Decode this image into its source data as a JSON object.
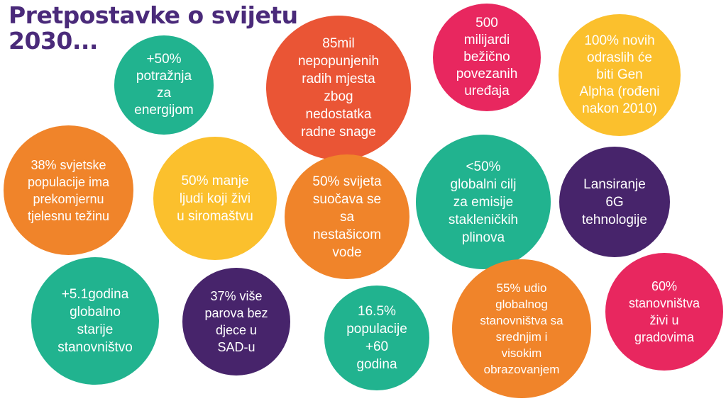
{
  "title": {
    "line1": "Pretpostavke o svijetu",
    "line2": "2030..."
  },
  "colors": {
    "teal": "#21b38f",
    "orange": "#f0842a",
    "red": "#ea5535",
    "pink": "#e8275f",
    "yellow": "#fbc02d",
    "purple": "#47246b",
    "title": "#4a2a7a"
  },
  "bubbles": [
    {
      "id": "energy-demand",
      "text": "+50%\npotražnja\nza\nenergijom",
      "color": "teal"
    },
    {
      "id": "unfilled-jobs",
      "text": "85mil\nnepopunjenih\nradih mjesta\nzbog\nnedostatka\nradne snage",
      "color": "red"
    },
    {
      "id": "wireless-devices",
      "text": "500\nmilijardi\nbežično\npovezanih\nuređaja",
      "color": "pink"
    },
    {
      "id": "gen-alpha",
      "text": "100% novih\nodraslih će\nbiti Gen\nAlpha (rođeni\nnakon 2010)",
      "color": "yellow"
    },
    {
      "id": "overweight",
      "text": "38% svjetske\npopulacije ima\nprekomjernu\ntjelesnu težinu",
      "color": "orange"
    },
    {
      "id": "poverty",
      "text": "50% manje\nljudi koji živi\nu siromaštvu",
      "color": "yellow"
    },
    {
      "id": "water-shortage",
      "text": "50% svijeta\nsuočava se\nsa\nnestašicom\nvode",
      "color": "orange"
    },
    {
      "id": "emissions",
      "text": "<50%\nglobalni cilj\nza emisije\nstakleničkih\nplinova",
      "color": "teal"
    },
    {
      "id": "6g",
      "text": "Lansiranje\n6G\ntehnologije",
      "color": "purple"
    },
    {
      "id": "aging",
      "text": "+5.1godina\nglobalno\nstarije\nstanovništvo",
      "color": "teal"
    },
    {
      "id": "childless-couples",
      "text": "37% više\nparova bez\ndjece u\nSAD-u",
      "color": "purple"
    },
    {
      "id": "population-60",
      "text": "16.5%\npopulacije\n+60\ngodina",
      "color": "teal"
    },
    {
      "id": "education",
      "text": "55% udio\nglobalnog\nstanovništva sa\nsrednjim i\nvisokim\nobrazovanjem",
      "color": "orange"
    },
    {
      "id": "cities",
      "text": "60%\nstanovništva\nživi u\ngradovima",
      "color": "pink"
    }
  ]
}
